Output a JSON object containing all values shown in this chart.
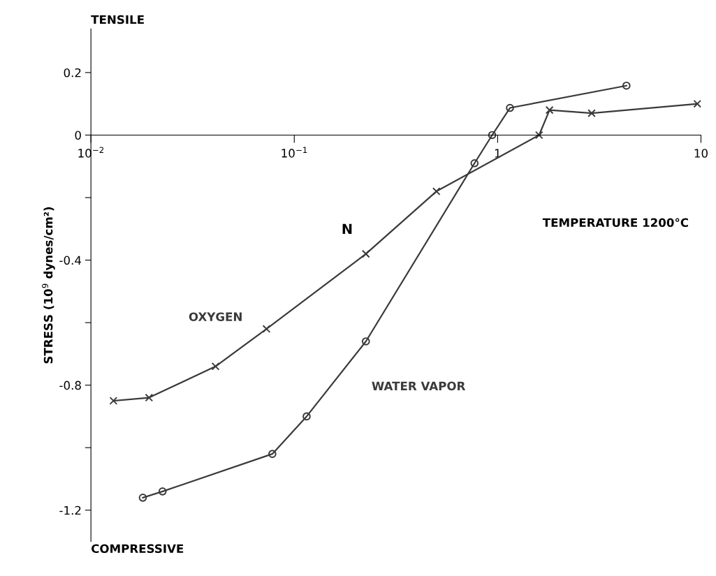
{
  "chart_data": {
    "type": "line",
    "xlabel": "N",
    "ylabel": "STRESS (10$^{9}$ dynes/cm²)",
    "log": "x",
    "xlim": [
      0.01,
      10
    ],
    "xticks": [
      {
        "value": 0.01,
        "label": "10$^{−2}$"
      },
      {
        "value": 0.1,
        "label": "10$^{−1}$"
      },
      {
        "value": 1,
        "label": "1"
      },
      {
        "value": 10,
        "label": "10"
      }
    ],
    "ylim": [
      -1.3,
      0.34
    ],
    "yticks": [
      0.2,
      0,
      {
        "value": -0.2,
        "label": null
      },
      -0.4,
      {
        "value": -0.6,
        "label": null
      },
      -0.8,
      {
        "value": -1.0,
        "label": null
      },
      -1.2
    ],
    "grid": false,
    "legend": false,
    "line_style": "solid",
    "annotations": [
      "TENSILE",
      "COMPRESSIVE",
      "TEMPERATURE 1200°C"
    ],
    "series": [
      {
        "name": "OXYGEN",
        "color": "#3a3a3a",
        "marker": "cross",
        "x": [
          0.0129,
          0.0193,
          0.041,
          0.073,
          0.225,
          0.5,
          1.6,
          1.8,
          2.9,
          9.6
        ],
        "values": [
          -0.85,
          -0.84,
          -0.74,
          -0.62,
          -0.38,
          -0.18,
          0,
          0.08,
          0.07,
          0.1
        ]
      },
      {
        "name": "WATER VAPOR",
        "color": "#3a3a3a",
        "marker": "circle",
        "x": [
          0.018,
          0.0225,
          0.078,
          0.115,
          0.225,
          0.77,
          0.94,
          1.15,
          4.3
        ],
        "values": [
          -1.16,
          -1.14,
          -1.02,
          -0.9,
          -0.66,
          -0.09,
          0,
          0.087,
          0.158
        ]
      }
    ]
  }
}
